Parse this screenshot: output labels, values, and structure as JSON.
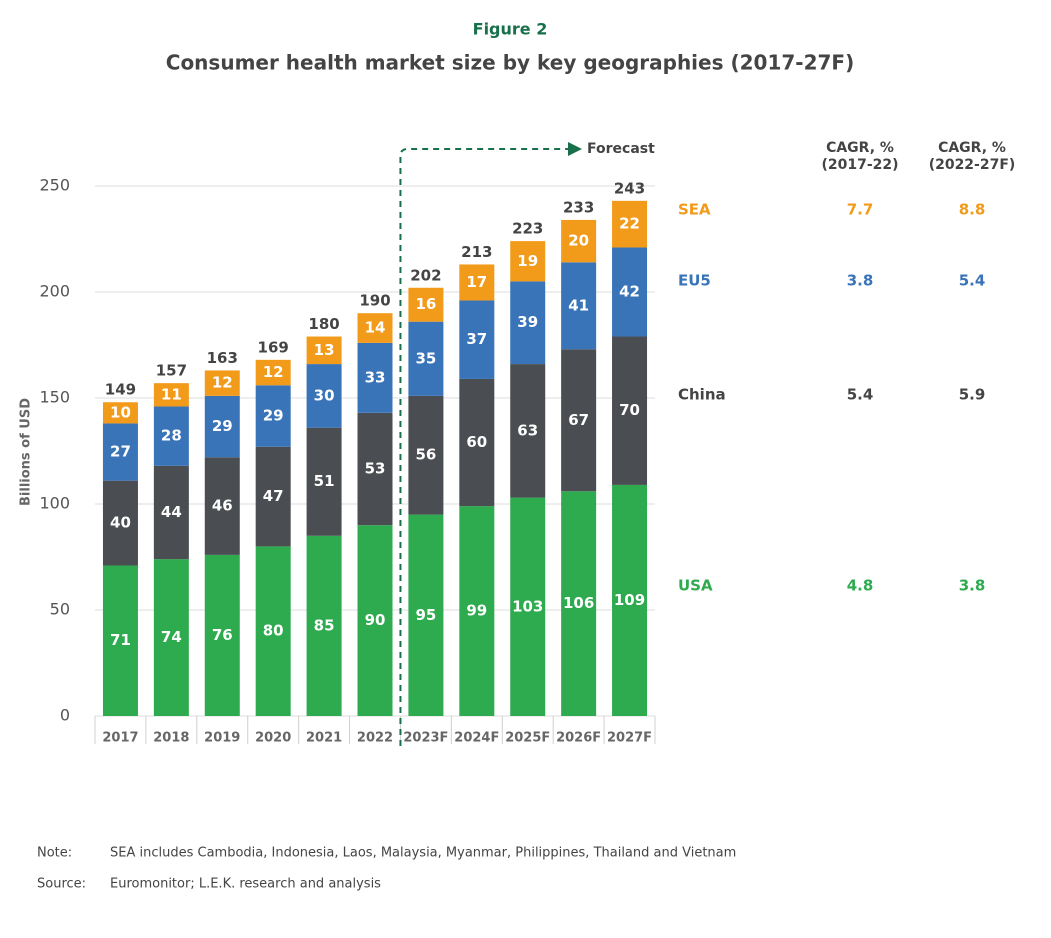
{
  "chart_data": {
    "type": "stacked_bar",
    "figure_label": "Figure 2",
    "title": "Consumer health market size by key geographies (2017-27F)",
    "y_label": "Billions of USD",
    "categories": [
      "2017",
      "2018",
      "2019",
      "2020",
      "2021",
      "2022",
      "2023F",
      "2024F",
      "2025F",
      "2026F",
      "2027F"
    ],
    "series": [
      {
        "name": "USA",
        "color": "#2eaa4f",
        "values": [
          71,
          74,
          76,
          80,
          85,
          90,
          95,
          99,
          103,
          106,
          109
        ],
        "cagr": [
          4.8,
          3.8
        ]
      },
      {
        "name": "China",
        "color": "#4a4d51",
        "values": [
          40,
          44,
          46,
          47,
          51,
          53,
          56,
          60,
          63,
          67,
          70
        ],
        "cagr": [
          5.4,
          5.9
        ]
      },
      {
        "name": "EU5",
        "color": "#3a74b8",
        "values": [
          27,
          28,
          29,
          29,
          30,
          33,
          35,
          37,
          39,
          41,
          42
        ],
        "cagr": [
          3.8,
          5.4
        ]
      },
      {
        "name": "SEA",
        "color": "#f29b1b",
        "values": [
          10,
          11,
          12,
          12,
          13,
          14,
          16,
          17,
          19,
          20,
          22
        ],
        "cagr": [
          7.7,
          8.8
        ]
      }
    ],
    "totals": [
      149,
      157,
      163,
      169,
      180,
      190,
      202,
      213,
      223,
      233,
      243
    ],
    "forecast_label": "Forecast",
    "cagr_headers": [
      [
        "CAGR, %",
        "(2017-22)"
      ],
      [
        "CAGR, %",
        "(2022-27F)"
      ]
    ],
    "ylim": [
      0,
      250
    ],
    "yticks": [
      0,
      50,
      100,
      150,
      200,
      250
    ],
    "grid": true,
    "notes": [
      {
        "label": "Note:",
        "text": "SEA includes Cambodia, Indonesia, Laos, Malaysia, Myanmar, Philippines, Thailand and Vietnam"
      },
      {
        "label": "Source:",
        "text": "Euromonitor; L.E.K. research and analysis"
      }
    ]
  }
}
